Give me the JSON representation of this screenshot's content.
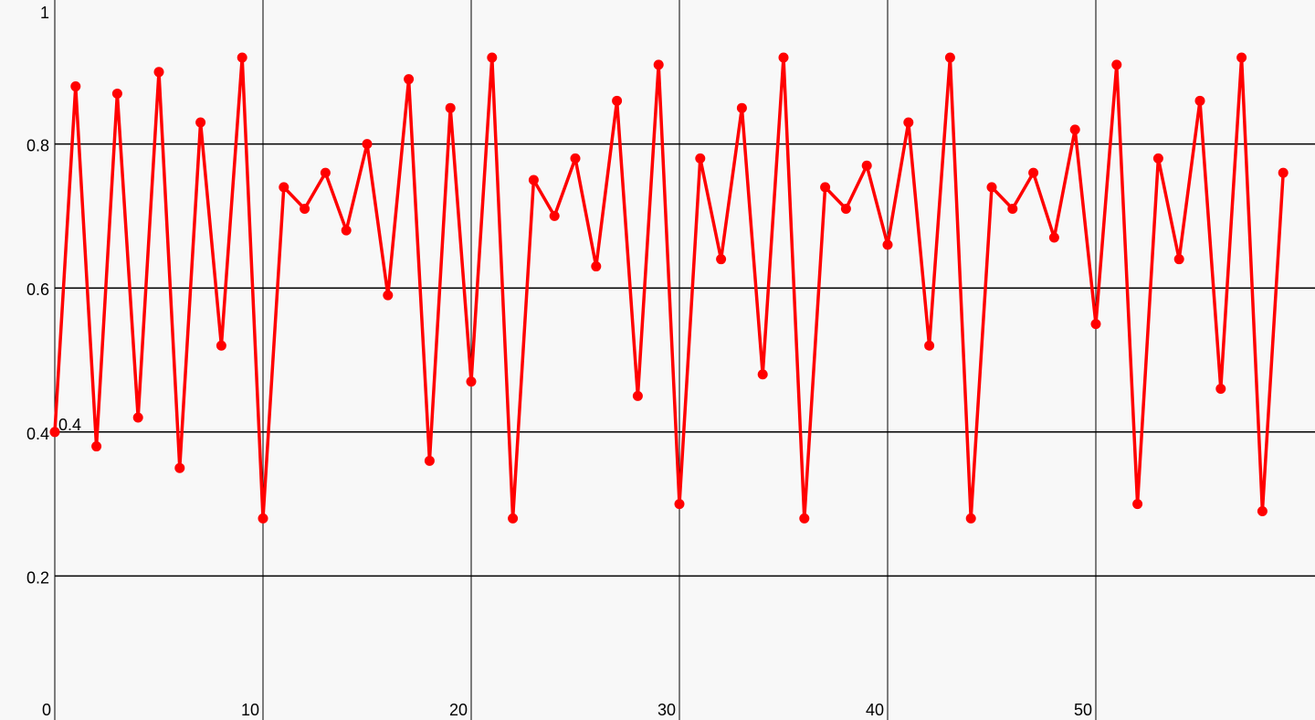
{
  "chart_data": {
    "type": "line",
    "title": "",
    "xlabel": "",
    "ylabel": "",
    "xlim": [
      0,
      59
    ],
    "ylim": [
      0,
      1
    ],
    "grid": true,
    "x_ticks": [
      {
        "value": 0,
        "label": "0"
      },
      {
        "value": 10,
        "label": "10"
      },
      {
        "value": 20,
        "label": "20"
      },
      {
        "value": 30,
        "label": "30"
      },
      {
        "value": 40,
        "label": "40"
      },
      {
        "value": 50,
        "label": "50"
      }
    ],
    "y_ticks": [
      {
        "value": 0.2,
        "label": "0.2"
      },
      {
        "value": 0.4,
        "label": "0.4"
      },
      {
        "value": 0.6,
        "label": "0.6"
      },
      {
        "value": 0.8,
        "label": "0.8"
      },
      {
        "value": 1,
        "label": "1"
      }
    ],
    "series": [
      {
        "color": "#ff0000",
        "x": [
          0,
          1,
          2,
          3,
          4,
          5,
          6,
          7,
          8,
          9,
          10,
          11,
          12,
          13,
          14,
          15,
          16,
          17,
          18,
          19,
          20,
          21,
          22,
          23,
          24,
          25,
          26,
          27,
          28,
          29,
          30,
          31,
          32,
          33,
          34,
          35,
          36,
          37,
          38,
          39,
          40,
          41,
          42,
          43,
          44,
          45,
          46,
          47,
          48,
          49,
          50,
          51,
          52,
          53,
          54,
          55,
          56,
          57,
          58,
          59
        ],
        "values": [
          0.4,
          0.88,
          0.38,
          0.87,
          0.42,
          0.9,
          0.35,
          0.83,
          0.52,
          0.92,
          0.28,
          0.74,
          0.71,
          0.76,
          0.68,
          0.8,
          0.59,
          0.89,
          0.36,
          0.85,
          0.47,
          0.92,
          0.28,
          0.75,
          0.7,
          0.78,
          0.63,
          0.86,
          0.45,
          0.91,
          0.3,
          0.78,
          0.64,
          0.85,
          0.48,
          0.92,
          0.28,
          0.74,
          0.71,
          0.77,
          0.66,
          0.83,
          0.52,
          0.92,
          0.28,
          0.74,
          0.71,
          0.76,
          0.67,
          0.82,
          0.55,
          0.91,
          0.3,
          0.78,
          0.64,
          0.86,
          0.46,
          0.92,
          0.29,
          0.76
        ]
      }
    ],
    "annotations": [
      {
        "x": 0,
        "y": 0.4,
        "text": "0.4"
      }
    ]
  }
}
